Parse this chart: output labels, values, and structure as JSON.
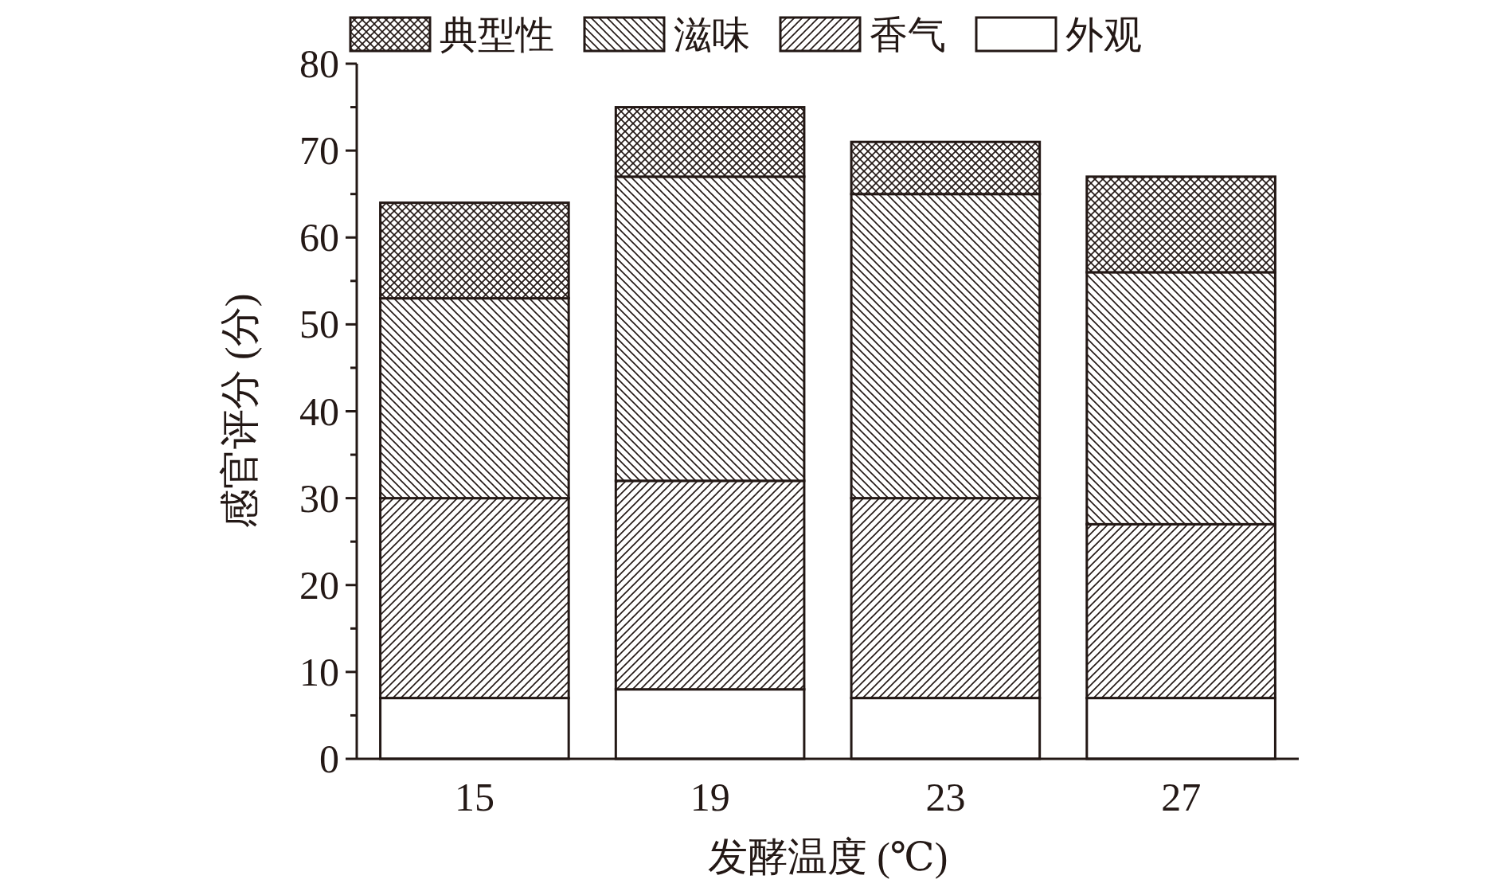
{
  "chart_data": {
    "type": "bar",
    "stacked": true,
    "xlabel": "发酵温度 (℃)",
    "ylabel": "感官评分 (分)",
    "categories": [
      "15",
      "19",
      "23",
      "27"
    ],
    "ylim": [
      0,
      80
    ],
    "yticks": [
      0,
      10,
      20,
      30,
      40,
      50,
      60,
      70,
      80
    ],
    "grid": false,
    "legend": "top",
    "series": [
      {
        "name": "外观",
        "color": "#ffffff",
        "values": [
          7,
          8,
          7,
          7
        ]
      },
      {
        "name": "香气",
        "color": "#231815",
        "values": [
          23,
          24,
          23,
          20
        ]
      },
      {
        "name": "滋味",
        "color": "#231815",
        "values": [
          23,
          35,
          35,
          29
        ]
      },
      {
        "name": "典型性",
        "color": "#231815",
        "values": [
          11,
          8,
          6,
          11
        ]
      }
    ]
  }
}
